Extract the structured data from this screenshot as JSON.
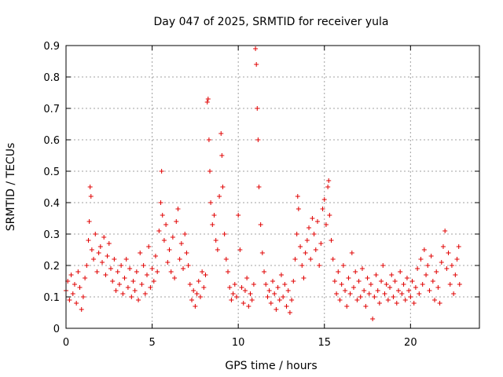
{
  "chart_data": {
    "type": "scatter",
    "title": "Day 047 of 2025, SRMTID for receiver yula",
    "xlabel": "GPS time / hours",
    "ylabel": "SRMTID / TECUs",
    "xlim": [
      0,
      24
    ],
    "ylim": [
      0,
      0.9
    ],
    "xticks": [
      0,
      5,
      10,
      15,
      20
    ],
    "yticks": [
      0,
      0.1,
      0.2,
      0.3,
      0.4,
      0.5,
      0.6,
      0.7,
      0.8,
      0.9
    ],
    "marker": "+",
    "color": "#e00000",
    "grid": true,
    "series": [
      {
        "name": "SRMTID",
        "points": [
          [
            0.0,
            0.12
          ],
          [
            0.1,
            0.15
          ],
          [
            0.2,
            0.09
          ],
          [
            0.3,
            0.17
          ],
          [
            0.4,
            0.11
          ],
          [
            0.5,
            0.14
          ],
          [
            0.6,
            0.08
          ],
          [
            0.7,
            0.18
          ],
          [
            0.8,
            0.13
          ],
          [
            0.9,
            0.06
          ],
          [
            1.0,
            0.1
          ],
          [
            1.1,
            0.16
          ],
          [
            1.2,
            0.2
          ],
          [
            1.3,
            0.28
          ],
          [
            1.35,
            0.34
          ],
          [
            1.4,
            0.45
          ],
          [
            1.45,
            0.42
          ],
          [
            1.5,
            0.25
          ],
          [
            1.6,
            0.22
          ],
          [
            1.7,
            0.3
          ],
          [
            1.8,
            0.18
          ],
          [
            1.9,
            0.24
          ],
          [
            2.0,
            0.26
          ],
          [
            2.1,
            0.21
          ],
          [
            2.2,
            0.29
          ],
          [
            2.3,
            0.17
          ],
          [
            2.4,
            0.23
          ],
          [
            2.5,
            0.27
          ],
          [
            2.6,
            0.19
          ],
          [
            2.7,
            0.15
          ],
          [
            2.8,
            0.22
          ],
          [
            2.9,
            0.12
          ],
          [
            3.0,
            0.18
          ],
          [
            3.1,
            0.14
          ],
          [
            3.2,
            0.2
          ],
          [
            3.3,
            0.11
          ],
          [
            3.4,
            0.16
          ],
          [
            3.5,
            0.22
          ],
          [
            3.6,
            0.13
          ],
          [
            3.7,
            0.19
          ],
          [
            3.8,
            0.1
          ],
          [
            3.9,
            0.15
          ],
          [
            4.0,
            0.12
          ],
          [
            4.1,
            0.18
          ],
          [
            4.2,
            0.09
          ],
          [
            4.3,
            0.24
          ],
          [
            4.4,
            0.14
          ],
          [
            4.5,
            0.2
          ],
          [
            4.6,
            0.11
          ],
          [
            4.7,
            0.17
          ],
          [
            4.8,
            0.26
          ],
          [
            4.9,
            0.13
          ],
          [
            5.0,
            0.19
          ],
          [
            5.1,
            0.15
          ],
          [
            5.2,
            0.23
          ],
          [
            5.3,
            0.18
          ],
          [
            5.4,
            0.31
          ],
          [
            5.5,
            0.4
          ],
          [
            5.55,
            0.5
          ],
          [
            5.6,
            0.36
          ],
          [
            5.7,
            0.28
          ],
          [
            5.8,
            0.33
          ],
          [
            5.9,
            0.21
          ],
          [
            6.0,
            0.25
          ],
          [
            6.1,
            0.18
          ],
          [
            6.2,
            0.29
          ],
          [
            6.3,
            0.16
          ],
          [
            6.4,
            0.34
          ],
          [
            6.5,
            0.38
          ],
          [
            6.6,
            0.22
          ],
          [
            6.7,
            0.27
          ],
          [
            6.8,
            0.19
          ],
          [
            6.9,
            0.3
          ],
          [
            7.0,
            0.24
          ],
          [
            7.1,
            0.2
          ],
          [
            7.2,
            0.14
          ],
          [
            7.3,
            0.09
          ],
          [
            7.4,
            0.12
          ],
          [
            7.5,
            0.07
          ],
          [
            7.6,
            0.11
          ],
          [
            7.7,
            0.15
          ],
          [
            7.8,
            0.1
          ],
          [
            7.9,
            0.18
          ],
          [
            8.0,
            0.13
          ],
          [
            8.1,
            0.17
          ],
          [
            8.2,
            0.72
          ],
          [
            8.25,
            0.73
          ],
          [
            8.3,
            0.6
          ],
          [
            8.35,
            0.5
          ],
          [
            8.4,
            0.4
          ],
          [
            8.5,
            0.33
          ],
          [
            8.6,
            0.36
          ],
          [
            8.7,
            0.28
          ],
          [
            8.8,
            0.25
          ],
          [
            8.9,
            0.42
          ],
          [
            9.0,
            0.62
          ],
          [
            9.05,
            0.55
          ],
          [
            9.1,
            0.45
          ],
          [
            9.2,
            0.3
          ],
          [
            9.3,
            0.22
          ],
          [
            9.4,
            0.18
          ],
          [
            9.5,
            0.13
          ],
          [
            9.6,
            0.09
          ],
          [
            9.7,
            0.11
          ],
          [
            9.8,
            0.14
          ],
          [
            9.9,
            0.1
          ],
          [
            10.0,
            0.36
          ],
          [
            10.1,
            0.25
          ],
          [
            10.2,
            0.13
          ],
          [
            10.3,
            0.08
          ],
          [
            10.4,
            0.12
          ],
          [
            10.5,
            0.16
          ],
          [
            10.6,
            0.07
          ],
          [
            10.7,
            0.11
          ],
          [
            10.8,
            0.09
          ],
          [
            10.9,
            0.14
          ],
          [
            11.0,
            0.89
          ],
          [
            11.05,
            0.84
          ],
          [
            11.1,
            0.7
          ],
          [
            11.15,
            0.6
          ],
          [
            11.2,
            0.45
          ],
          [
            11.3,
            0.33
          ],
          [
            11.4,
            0.24
          ],
          [
            11.5,
            0.18
          ],
          [
            11.6,
            0.14
          ],
          [
            11.7,
            0.1
          ],
          [
            11.8,
            0.12
          ],
          [
            11.9,
            0.08
          ],
          [
            12.0,
            0.15
          ],
          [
            12.1,
            0.11
          ],
          [
            12.2,
            0.06
          ],
          [
            12.3,
            0.13
          ],
          [
            12.4,
            0.09
          ],
          [
            12.5,
            0.17
          ],
          [
            12.6,
            0.1
          ],
          [
            12.7,
            0.14
          ],
          [
            12.8,
            0.07
          ],
          [
            12.9,
            0.12
          ],
          [
            13.0,
            0.05
          ],
          [
            13.1,
            0.09
          ],
          [
            13.2,
            0.15
          ],
          [
            13.3,
            0.22
          ],
          [
            13.4,
            0.3
          ],
          [
            13.45,
            0.42
          ],
          [
            13.5,
            0.38
          ],
          [
            13.6,
            0.26
          ],
          [
            13.7,
            0.2
          ],
          [
            13.8,
            0.16
          ],
          [
            13.9,
            0.24
          ],
          [
            14.0,
            0.28
          ],
          [
            14.1,
            0.32
          ],
          [
            14.2,
            0.22
          ],
          [
            14.3,
            0.35
          ],
          [
            14.4,
            0.3
          ],
          [
            14.5,
            0.25
          ],
          [
            14.6,
            0.34
          ],
          [
            14.7,
            0.2
          ],
          [
            14.8,
            0.27
          ],
          [
            14.9,
            0.38
          ],
          [
            15.0,
            0.41
          ],
          [
            15.1,
            0.33
          ],
          [
            15.2,
            0.45
          ],
          [
            15.25,
            0.47
          ],
          [
            15.3,
            0.36
          ],
          [
            15.4,
            0.28
          ],
          [
            15.5,
            0.22
          ],
          [
            15.6,
            0.15
          ],
          [
            15.7,
            0.11
          ],
          [
            15.8,
            0.18
          ],
          [
            15.9,
            0.09
          ],
          [
            16.0,
            0.14
          ],
          [
            16.1,
            0.2
          ],
          [
            16.2,
            0.12
          ],
          [
            16.3,
            0.07
          ],
          [
            16.4,
            0.16
          ],
          [
            16.5,
            0.11
          ],
          [
            16.6,
            0.24
          ],
          [
            16.7,
            0.13
          ],
          [
            16.8,
            0.18
          ],
          [
            16.9,
            0.09
          ],
          [
            17.0,
            0.15
          ],
          [
            17.1,
            0.1
          ],
          [
            17.2,
            0.19
          ],
          [
            17.3,
            0.12
          ],
          [
            17.4,
            0.07
          ],
          [
            17.5,
            0.16
          ],
          [
            17.6,
            0.11
          ],
          [
            17.7,
            0.14
          ],
          [
            17.8,
            0.03
          ],
          [
            17.9,
            0.1
          ],
          [
            18.0,
            0.17
          ],
          [
            18.1,
            0.12
          ],
          [
            18.2,
            0.08
          ],
          [
            18.3,
            0.15
          ],
          [
            18.4,
            0.2
          ],
          [
            18.5,
            0.11
          ],
          [
            18.6,
            0.14
          ],
          [
            18.7,
            0.09
          ],
          [
            18.8,
            0.13
          ],
          [
            18.9,
            0.17
          ],
          [
            19.0,
            0.1
          ],
          [
            19.1,
            0.15
          ],
          [
            19.2,
            0.08
          ],
          [
            19.3,
            0.12
          ],
          [
            19.4,
            0.18
          ],
          [
            19.5,
            0.11
          ],
          [
            19.6,
            0.14
          ],
          [
            19.7,
            0.09
          ],
          [
            19.8,
            0.16
          ],
          [
            19.9,
            0.12
          ],
          [
            20.0,
            0.1
          ],
          [
            20.1,
            0.15
          ],
          [
            20.2,
            0.08
          ],
          [
            20.3,
            0.13
          ],
          [
            20.4,
            0.19
          ],
          [
            20.5,
            0.11
          ],
          [
            20.6,
            0.22
          ],
          [
            20.7,
            0.14
          ],
          [
            20.8,
            0.25
          ],
          [
            20.9,
            0.17
          ],
          [
            21.0,
            0.2
          ],
          [
            21.1,
            0.12
          ],
          [
            21.2,
            0.23
          ],
          [
            21.3,
            0.15
          ],
          [
            21.4,
            0.09
          ],
          [
            21.5,
            0.18
          ],
          [
            21.6,
            0.13
          ],
          [
            21.7,
            0.08
          ],
          [
            21.8,
            0.21
          ],
          [
            21.9,
            0.26
          ],
          [
            22.0,
            0.31
          ],
          [
            22.1,
            0.19
          ],
          [
            22.2,
            0.24
          ],
          [
            22.3,
            0.14
          ],
          [
            22.4,
            0.2
          ],
          [
            22.5,
            0.11
          ],
          [
            22.6,
            0.17
          ],
          [
            22.7,
            0.22
          ],
          [
            22.8,
            0.26
          ],
          [
            22.85,
            0.14
          ]
        ]
      }
    ]
  }
}
